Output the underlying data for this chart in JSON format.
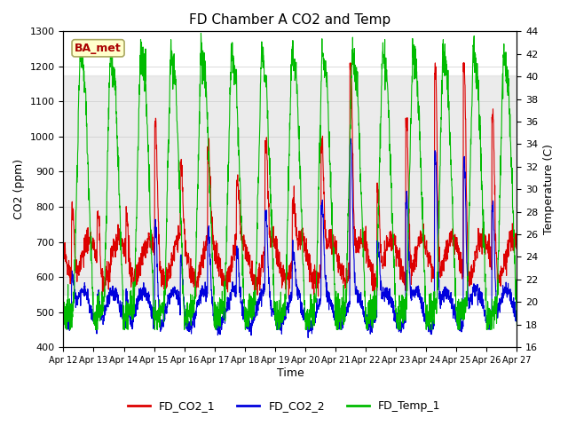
{
  "title": "FD Chamber A CO2 and Temp",
  "xlabel": "Time",
  "ylabel_left": "CO2 (ppm)",
  "ylabel_right": "Temperature (C)",
  "ylim_left": [
    400,
    1300
  ],
  "ylim_right": [
    16,
    44
  ],
  "shade_co2": [
    550,
    1175
  ],
  "x_tick_labels": [
    "Apr 12",
    "Apr 13",
    "Apr 14",
    "Apr 15",
    "Apr 16",
    "Apr 17",
    "Apr 18",
    "Apr 19",
    "Apr 20",
    "Apr 21",
    "Apr 22",
    "Apr 23",
    "Apr 24",
    "Apr 25",
    "Apr 26",
    "Apr 27"
  ],
  "legend_labels": [
    "FD_CO2_1",
    "FD_CO2_2",
    "FD_Temp_1"
  ],
  "legend_colors": [
    "#dd0000",
    "#0000dd",
    "#00bb00"
  ],
  "ba_met_label": "BA_met",
  "ba_met_color": "#aa0000",
  "ba_met_bg": "#ffffcc",
  "line_width": 0.8,
  "background_color": "#ffffff",
  "grid_color": "#cccccc",
  "figsize": [
    6.4,
    4.8
  ],
  "dpi": 100
}
